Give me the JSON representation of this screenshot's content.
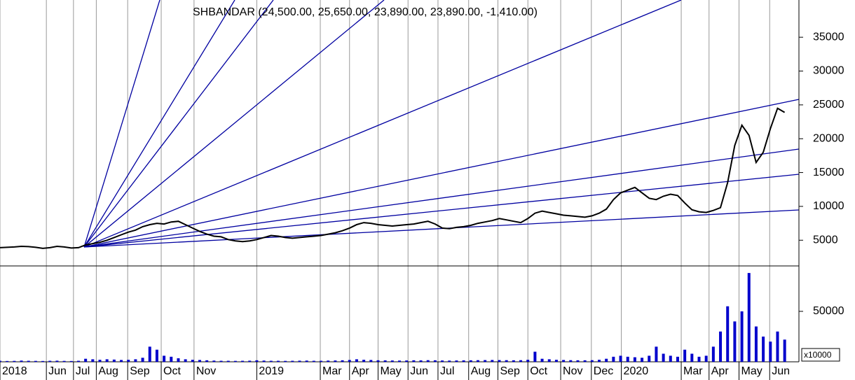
{
  "chart_data": [
    {
      "type": "line",
      "title": "SHBANDAR (24,500.00, 25,650.00, 23,890.00, 23,890.00, -1,410.00)",
      "x": [
        0,
        1,
        2,
        3,
        4,
        5,
        6,
        7,
        8,
        9,
        10,
        11,
        12,
        13,
        14,
        15,
        16,
        17,
        18,
        19,
        20,
        21,
        22,
        23,
        24,
        25,
        26,
        27,
        28,
        29,
        30,
        31,
        32,
        33,
        34,
        35,
        36,
        37,
        38,
        39,
        40,
        41,
        42,
        43,
        44,
        45,
        46,
        47,
        48,
        49,
        50,
        51,
        52,
        53,
        54,
        55,
        56,
        57,
        58,
        59,
        60,
        61,
        62,
        63,
        64,
        65,
        66,
        67,
        68,
        69,
        70,
        71,
        72,
        73,
        74,
        75,
        76,
        77,
        78,
        79,
        80,
        81,
        82,
        83,
        84,
        85,
        86,
        87,
        88,
        89,
        90,
        91,
        92,
        93,
        94,
        95,
        96,
        97,
        98,
        99,
        100,
        101,
        102,
        103,
        104,
        105,
        106,
        107,
        108,
        109,
        110
      ],
      "series": [
        {
          "color": "#000000",
          "values": [
            3900,
            3950,
            4000,
            4100,
            4050,
            3950,
            3800,
            3900,
            4100,
            4000,
            3850,
            3900,
            4300,
            4500,
            4700,
            5000,
            5400,
            5800,
            6200,
            6500,
            7000,
            7300,
            7500,
            7400,
            7700,
            7800,
            7300,
            6800,
            6300,
            5900,
            5600,
            5500,
            5100,
            4900,
            4800,
            4900,
            5100,
            5400,
            5700,
            5600,
            5400,
            5300,
            5400,
            5500,
            5600,
            5700,
            5900,
            6100,
            6400,
            6800,
            7300,
            7600,
            7500,
            7300,
            7200,
            7100,
            7200,
            7300,
            7400,
            7600,
            7800,
            7400,
            6800,
            6700,
            6900,
            7000,
            7200,
            7500,
            7700,
            7900,
            8200,
            8000,
            7800,
            7600,
            8200,
            9000,
            9300,
            9100,
            8900,
            8700,
            8600,
            8500,
            8400,
            8600,
            9000,
            9600,
            11000,
            12000,
            12400,
            12800,
            12000,
            11200,
            11000,
            11500,
            11800,
            11600,
            10500,
            9500,
            9200,
            9100,
            9400,
            9800,
            13500,
            19000,
            22000,
            20500,
            16500,
            18000,
            21500,
            24500,
            23890
          ]
        }
      ],
      "xlim": [
        0,
        112
      ],
      "xticks": [
        0,
        6.5,
        10.3,
        13.5,
        17.9,
        22.6,
        27.2,
        36,
        44.9,
        49,
        53,
        57.2,
        61.4,
        65.7,
        69.8,
        74,
        78.6,
        82.9,
        87.1,
        95.5,
        99.4,
        103.6,
        107.9
      ],
      "ylim": [
        1200,
        40500
      ],
      "yticks": [
        5000,
        10000,
        15000,
        20000,
        25000,
        30000,
        35000
      ],
      "grid": true
    },
    {
      "type": "bar",
      "unit_label": "x10000",
      "x": [
        0,
        1,
        2,
        3,
        4,
        5,
        6,
        7,
        8,
        9,
        10,
        11,
        12,
        13,
        14,
        15,
        16,
        17,
        18,
        19,
        20,
        21,
        22,
        23,
        24,
        25,
        26,
        27,
        28,
        29,
        30,
        31,
        32,
        33,
        34,
        35,
        36,
        37,
        38,
        39,
        40,
        41,
        42,
        43,
        44,
        45,
        46,
        47,
        48,
        49,
        50,
        51,
        52,
        53,
        54,
        55,
        56,
        57,
        58,
        59,
        60,
        61,
        62,
        63,
        64,
        65,
        66,
        67,
        68,
        69,
        70,
        71,
        72,
        73,
        74,
        75,
        76,
        77,
        78,
        79,
        80,
        81,
        82,
        83,
        84,
        85,
        86,
        87,
        88,
        89,
        90,
        91,
        92,
        93,
        94,
        95,
        96,
        97,
        98,
        99,
        100,
        101,
        102,
        103,
        104,
        105,
        106,
        107,
        108,
        109,
        110
      ],
      "color": "#0000cc",
      "values": [
        1000,
        800,
        900,
        1200,
        1000,
        900,
        800,
        1000,
        1100,
        900,
        800,
        1000,
        3000,
        2500,
        2000,
        2500,
        2200,
        1800,
        2000,
        2500,
        4000,
        15000,
        12000,
        6000,
        5000,
        3500,
        2500,
        2000,
        1800,
        1500,
        1200,
        1000,
        1000,
        900,
        1000,
        1100,
        1500,
        1200,
        1000,
        1000,
        900,
        1000,
        1100,
        1200,
        1000,
        1000,
        1200,
        1300,
        1500,
        1800,
        2500,
        2000,
        1800,
        1500,
        1400,
        1300,
        1200,
        1300,
        1500,
        1400,
        1600,
        1500,
        1300,
        1200,
        1300,
        1400,
        1500,
        1600,
        1700,
        1800,
        1700,
        1600,
        1500,
        1600,
        2000,
        10000,
        3000,
        2500,
        2000,
        1800,
        1600,
        1500,
        1500,
        1600,
        2000,
        3000,
        5000,
        6000,
        5000,
        4500,
        4000,
        6000,
        15000,
        8000,
        6000,
        5000,
        12000,
        8000,
        5000,
        6000,
        15000,
        30000,
        55000,
        40000,
        50000,
        88000,
        35000,
        25000,
        20000,
        30000,
        22000
      ],
      "xlim": [
        0,
        112
      ],
      "xticks": [
        {
          "value": 0,
          "label": "2018"
        },
        {
          "value": 6.5,
          "label": "Jun"
        },
        {
          "value": 10.3,
          "label": "Jul"
        },
        {
          "value": 13.5,
          "label": "Aug"
        },
        {
          "value": 17.9,
          "label": "Sep"
        },
        {
          "value": 22.6,
          "label": "Oct"
        },
        {
          "value": 27.2,
          "label": "Nov"
        },
        {
          "value": 36,
          "label": "2019"
        },
        {
          "value": 44.9,
          "label": "Mar"
        },
        {
          "value": 49,
          "label": "Apr"
        },
        {
          "value": 53,
          "label": "May"
        },
        {
          "value": 57.2,
          "label": "Jun"
        },
        {
          "value": 61.4,
          "label": "Jul"
        },
        {
          "value": 65.7,
          "label": "Aug"
        },
        {
          "value": 69.8,
          "label": "Sep"
        },
        {
          "value": 74,
          "label": "Oct"
        },
        {
          "value": 78.6,
          "label": "Nov"
        },
        {
          "value": 82.9,
          "label": "Dec"
        },
        {
          "value": 87.1,
          "label": "2020"
        },
        {
          "value": 95.5,
          "label": "Mar"
        },
        {
          "value": 99.4,
          "label": "Apr"
        },
        {
          "value": 103.6,
          "label": "May"
        },
        {
          "value": 107.9,
          "label": "Jun"
        }
      ],
      "ylim": [
        0,
        95000
      ],
      "yticks": [
        50000
      ],
      "grid": true
    }
  ]
}
